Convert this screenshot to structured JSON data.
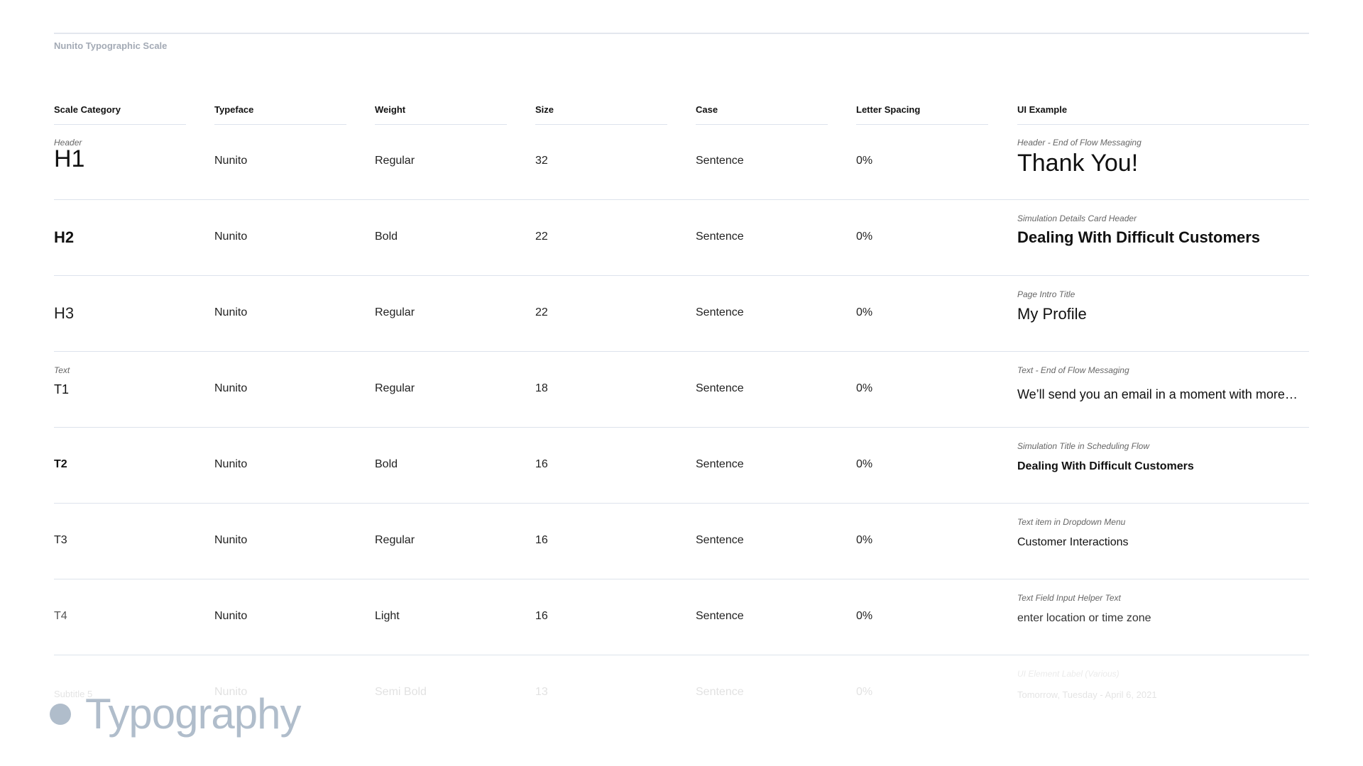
{
  "page": {
    "subtitle": "Nunito Typographic Scale",
    "section_title": "Typography"
  },
  "columns": [
    "Scale Category",
    "Typeface",
    "Weight",
    "Size",
    "Case",
    "Letter Spacing",
    "UI Example"
  ],
  "rows": [
    {
      "group": "Header",
      "category": "H1",
      "typeface": "Nunito",
      "weight": "Regular",
      "size": "32",
      "case": "Sentence",
      "spacing": "0%",
      "example_label": "Header - End of Flow Messaging",
      "example": "Thank You!"
    },
    {
      "group": "",
      "category": "H2",
      "typeface": "Nunito",
      "weight": "Bold",
      "size": "22",
      "case": "Sentence",
      "spacing": "0%",
      "example_label": "Simulation Details Card Header",
      "example": "Dealing With Difficult Customers"
    },
    {
      "group": "",
      "category": "H3",
      "typeface": "Nunito",
      "weight": "Regular",
      "size": "22",
      "case": "Sentence",
      "spacing": "0%",
      "example_label": "Page Intro Title",
      "example": "My Profile"
    },
    {
      "group": "Text",
      "category": "T1",
      "typeface": "Nunito",
      "weight": "Regular",
      "size": "18",
      "case": "Sentence",
      "spacing": "0%",
      "example_label": "Text - End of Flow Messaging",
      "example": "We’ll send you an email in a moment with more…"
    },
    {
      "group": "",
      "category": "T2",
      "typeface": "Nunito",
      "weight": "Bold",
      "size": "16",
      "case": "Sentence",
      "spacing": "0%",
      "example_label": "Simulation Title in Scheduling Flow",
      "example": "Dealing With Difficult Customers"
    },
    {
      "group": "",
      "category": "T3",
      "typeface": "Nunito",
      "weight": "Regular",
      "size": "16",
      "case": "Sentence",
      "spacing": "0%",
      "example_label": "Text item in Dropdown Menu",
      "example": "Customer Interactions"
    },
    {
      "group": "",
      "category": "T4",
      "typeface": "Nunito",
      "weight": "Light",
      "size": "16",
      "case": "Sentence",
      "spacing": "0%",
      "example_label": "Text Field Input Helper Text",
      "example": "enter location or time zone"
    },
    {
      "group": "",
      "category": "Subtitle 5",
      "typeface": "Nunito",
      "weight": "Semi Bold",
      "size": "13",
      "case": "Sentence",
      "spacing": "0%",
      "example_label": "UI Element Label (Various)",
      "example": "Tomorrow, Tuesday - April 6, 2021"
    }
  ],
  "colors": {
    "divider": "#dde3ec",
    "muted": "#a3aab5",
    "brand": "#b0bdcb"
  }
}
